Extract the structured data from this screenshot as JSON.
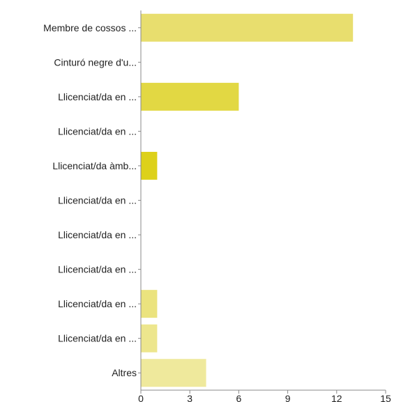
{
  "chart_data": {
    "type": "bar",
    "orientation": "horizontal",
    "categories": [
      "Membre de cossos ...",
      "Cinturó negre d'u...",
      "Llicenciat/da en ...",
      "Llicenciat/da en ...",
      "Llicenciat/da àmb...",
      "Llicenciat/da en ...",
      "Llicenciat/da en ...",
      "Llicenciat/da en ...",
      "Llicenciat/da en ...",
      "Llicenciat/da en ...",
      "Altres"
    ],
    "values": [
      13,
      0,
      6,
      0,
      1,
      0,
      0,
      0,
      1,
      1,
      4
    ],
    "bar_colors": [
      "#e8de6e",
      "#e8de6e",
      "#e2d843",
      "#e8de6e",
      "#ddd11a",
      "#e8de6e",
      "#e8de6e",
      "#e8de6e",
      "#ebe37e",
      "#ede68d",
      "#efe99c"
    ],
    "xlim": [
      0,
      15
    ],
    "xticks": [
      "0",
      "3",
      "6",
      "9",
      "12",
      "15"
    ],
    "grid": false,
    "axis_color": "#888888"
  }
}
